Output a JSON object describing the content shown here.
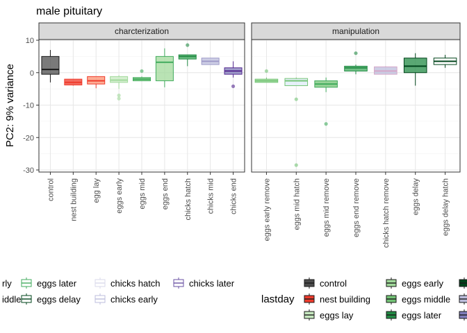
{
  "chart_data": {
    "type": "box",
    "title": "male pituitary",
    "ylabel": "PC2: 9% variance",
    "xlabel": "",
    "ylim": [
      -30,
      10
    ],
    "yticks": [
      10,
      0,
      -10,
      -20,
      -30
    ],
    "grid": true,
    "legend_position": "bottom",
    "facets": [
      {
        "label": "charcterization",
        "categories": [
          {
            "name": "control",
            "stats": {
              "min": -3.0,
              "q1": -0.5,
              "median": 1.0,
              "q3": 5.0,
              "max": 7.0
            },
            "outliers": [],
            "fill": "#4d4d4d",
            "line": "#1a1a1a"
          },
          {
            "name": "nest building",
            "stats": {
              "min": -4.0,
              "q1": -3.8,
              "median": -3.0,
              "q3": -2.0,
              "max": -2.0
            },
            "outliers": [],
            "fill": "#ef3b2c",
            "line": "#ef3b2c"
          },
          {
            "name": "egg lay",
            "stats": {
              "min": -4.8,
              "q1": -3.5,
              "median": -2.5,
              "q3": -1.2,
              "max": -1.2
            },
            "outliers": [],
            "fill": "#fc9272",
            "line": "#ef3b2c"
          },
          {
            "name": "eggs early",
            "stats": {
              "min": -5.0,
              "q1": -3.0,
              "median": -2.3,
              "q3": -1.2,
              "max": -0.8
            },
            "outliers": [
              -7.0,
              -8.0
            ],
            "fill": "#c7e9c0",
            "line": "#a1d99b"
          },
          {
            "name": "eggs mid",
            "stats": {
              "min": -2.5,
              "q1": -2.5,
              "median": -2.0,
              "q3": -1.5,
              "max": -1.2
            },
            "outliers": [
              0.5
            ],
            "fill": "#74c476",
            "line": "#41ab5d"
          },
          {
            "name": "eggs end",
            "stats": {
              "min": -4.5,
              "q1": -2.5,
              "median": 3.2,
              "q3": 5.0,
              "max": 7.5
            },
            "outliers": [],
            "fill": "#a1d99b",
            "line": "#41ab5d"
          },
          {
            "name": "chicks hatch",
            "stats": {
              "min": 2.0,
              "q1": 4.2,
              "median": 5.0,
              "q3": 5.5,
              "max": 5.5
            },
            "outliers": [
              8.5
            ],
            "fill": "#41ab5d",
            "line": "#238b45"
          },
          {
            "name": "chicks mid",
            "stats": {
              "min": 2.5,
              "q1": 2.5,
              "median": 3.5,
              "q3": 4.5,
              "max": 4.5
            },
            "outliers": [],
            "fill": "#bcbddc",
            "line": "#9e9ac8"
          },
          {
            "name": "chicks end",
            "stats": {
              "min": -1.5,
              "q1": -0.5,
              "median": 0.5,
              "q3": 1.5,
              "max": 3.5
            },
            "outliers": [
              -4.2
            ],
            "fill": "#807dba",
            "line": "#54278f"
          }
        ]
      },
      {
        "label": "manipulation",
        "categories": [
          {
            "name": "eggs early remove",
            "stats": {
              "min": -3.0,
              "q1": -3.0,
              "median": -2.5,
              "q3": -2.0,
              "max": -1.5
            },
            "outliers": [
              0.5
            ],
            "fill": "#a1d99b",
            "line": "#74c476"
          },
          {
            "name": "eggs mid hatch",
            "stats": {
              "min": -4.0,
              "q1": -4.0,
              "median": -2.5,
              "q3": -1.8,
              "max": -1.5
            },
            "outliers": [
              -8.2,
              -28.5
            ],
            "fill": "#deebf7",
            "line": "#74c476"
          },
          {
            "name": "eggs mid remove",
            "stats": {
              "min": -6.0,
              "q1": -4.5,
              "median": -3.5,
              "q3": -2.5,
              "max": -1.5
            },
            "outliers": [
              -15.8
            ],
            "fill": "#74c476",
            "line": "#41ab5d"
          },
          {
            "name": "eggs end remove",
            "stats": {
              "min": -0.5,
              "q1": 0.5,
              "median": 1.5,
              "q3": 2.0,
              "max": 2.5
            },
            "outliers": [
              6.0
            ],
            "fill": "#41ab5d",
            "line": "#238b45"
          },
          {
            "name": "chicks hatch remove",
            "stats": {
              "min": -0.5,
              "q1": -0.5,
              "median": 0.5,
              "q3": 1.8,
              "max": 2.0
            },
            "outliers": [],
            "fill": "#bcbddc",
            "line": "#d4a6c8"
          },
          {
            "name": "eggs delay",
            "stats": {
              "min": -4.0,
              "q1": 0.0,
              "median": 2.0,
              "q3": 4.5,
              "max": 6.0
            },
            "outliers": [],
            "fill": "#238b45",
            "line": "#00441b"
          },
          {
            "name": "eggs delay hatch",
            "stats": {
              "min": 1.5,
              "q1": 2.5,
              "median": 3.5,
              "q3": 4.5,
              "max": 5.5
            },
            "outliers": [],
            "fill": "#ffffff",
            "line": "#00441b"
          }
        ]
      }
    ],
    "legend_left": {
      "entries": [
        {
          "label": "rly",
          "fill": "#ffffff",
          "line": "#c7e9c0"
        },
        {
          "label": "iddle",
          "fill": "#ffffff",
          "line": "#74c476"
        },
        {
          "label": "eggs later",
          "fill": "#ffffff",
          "line": "#41ab5d"
        },
        {
          "label": "eggs delay",
          "fill": "#ffffff",
          "line": "#00441b"
        },
        {
          "label": "chicks hatch",
          "fill": "#ffffff",
          "line": "#dadaeb"
        },
        {
          "label": "chicks early",
          "fill": "#ffffff",
          "line": "#bcbddc"
        },
        {
          "label": "chicks later",
          "fill": "#ffffff",
          "line": "#6a51a3"
        }
      ]
    },
    "legend_right": {
      "title": "lastday",
      "entries": [
        {
          "label": "control",
          "fill": "#4d4d4d",
          "line": "#1a1a1a"
        },
        {
          "label": "nest building",
          "fill": "#ef3b2c",
          "line": "#1a1a1a"
        },
        {
          "label": "eggs lay",
          "fill": "#c7e9c0",
          "line": "#1a1a1a"
        },
        {
          "label": "eggs early",
          "fill": "#a1d99b",
          "line": "#1a1a1a"
        },
        {
          "label": "eggs middle",
          "fill": "#74c476",
          "line": "#1a1a1a"
        },
        {
          "label": "eggs later",
          "fill": "#238b45",
          "line": "#1a1a1a"
        },
        {
          "label": "",
          "fill": "#00441b",
          "line": "#1a1a1a"
        },
        {
          "label": "",
          "fill": "#bcbddc",
          "line": "#1a1a1a"
        },
        {
          "label": "",
          "fill": "#807dba",
          "line": "#1a1a1a"
        }
      ]
    }
  }
}
